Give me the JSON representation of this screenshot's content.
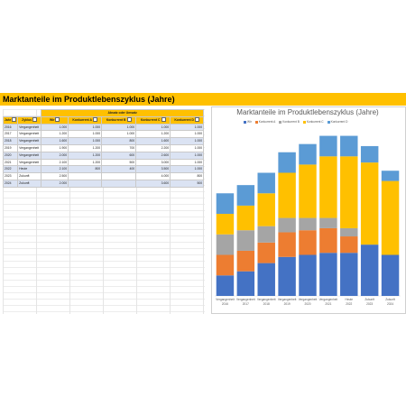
{
  "title": "Marktanteile im Produktlebenszyklus (Jahre)",
  "table": {
    "group_header": "Absatz oder Umsatz",
    "columns": [
      "Jahr",
      "Zyklus",
      "Wir",
      "Konkurrent A",
      "Konkurrent B",
      "Konkurrent C",
      "Konkurrent D"
    ],
    "rows": [
      [
        "2016",
        "Vergangenheit",
        "1.000",
        "1.000",
        "1.000",
        "1.000",
        "1.000"
      ],
      [
        "2017",
        "Vergangenheit",
        "1.200",
        "1.000",
        "1.000",
        "1.200",
        "1.000"
      ],
      [
        "2018",
        "Vergangenheit",
        "1.600",
        "1.000",
        "800",
        "1.600",
        "1.000"
      ],
      [
        "2019",
        "Vergangenheit",
        "1.900",
        "1.200",
        "700",
        "2.200",
        "1.000"
      ],
      [
        "2020",
        "Vergangenheit",
        "2.000",
        "1.200",
        "600",
        "2.600",
        "1.000"
      ],
      [
        "2021",
        "Vergangenheit",
        "2.100",
        "1.200",
        "500",
        "3.000",
        "1.000"
      ],
      [
        "2022",
        "Heute",
        "2.100",
        "800",
        "400",
        "3.500",
        "1.000"
      ],
      [
        "2023",
        "Zukunft",
        "2.500",
        "",
        "",
        "4.000",
        "800"
      ],
      [
        "2024",
        "Zukunft",
        "2.000",
        "",
        "",
        "3.600",
        "500"
      ]
    ]
  },
  "chart_data": {
    "type": "bar",
    "stacked": true,
    "title": "Marktanteile im Produktlebenszyklus (Jahre)",
    "categories": [
      [
        "Vergangenheit",
        "2016"
      ],
      [
        "Vergangenheit",
        "2017"
      ],
      [
        "Vergangenheit",
        "2018"
      ],
      [
        "Vergangenheit",
        "2019"
      ],
      [
        "Vergangenheit",
        "2020"
      ],
      [
        "Vergangenheit",
        "2021"
      ],
      [
        "Heute",
        "2022"
      ],
      [
        "Zukunft",
        "2023"
      ],
      [
        "Zukunft",
        "2024"
      ]
    ],
    "series": [
      {
        "name": "Wir",
        "color": "#4472c4",
        "values": [
          1000,
          1200,
          1600,
          1900,
          2000,
          2100,
          2100,
          2500,
          2000
        ]
      },
      {
        "name": "Konkurrent A",
        "color": "#ed7d31",
        "values": [
          1000,
          1000,
          1000,
          1200,
          1200,
          1200,
          800,
          0,
          0
        ]
      },
      {
        "name": "Konkurrent B",
        "color": "#a5a5a5",
        "values": [
          1000,
          1000,
          800,
          700,
          600,
          500,
          400,
          0,
          0
        ]
      },
      {
        "name": "Konkurrent C",
        "color": "#ffc000",
        "values": [
          1000,
          1200,
          1600,
          2200,
          2600,
          3000,
          3500,
          4000,
          3600
        ]
      },
      {
        "name": "Konkurrent D",
        "color": "#5b9bd5",
        "values": [
          1000,
          1000,
          1000,
          1000,
          1000,
          1000,
          1000,
          800,
          500
        ]
      }
    ],
    "ylim": [
      0,
      8000
    ],
    "grid": false,
    "legend": "top"
  }
}
